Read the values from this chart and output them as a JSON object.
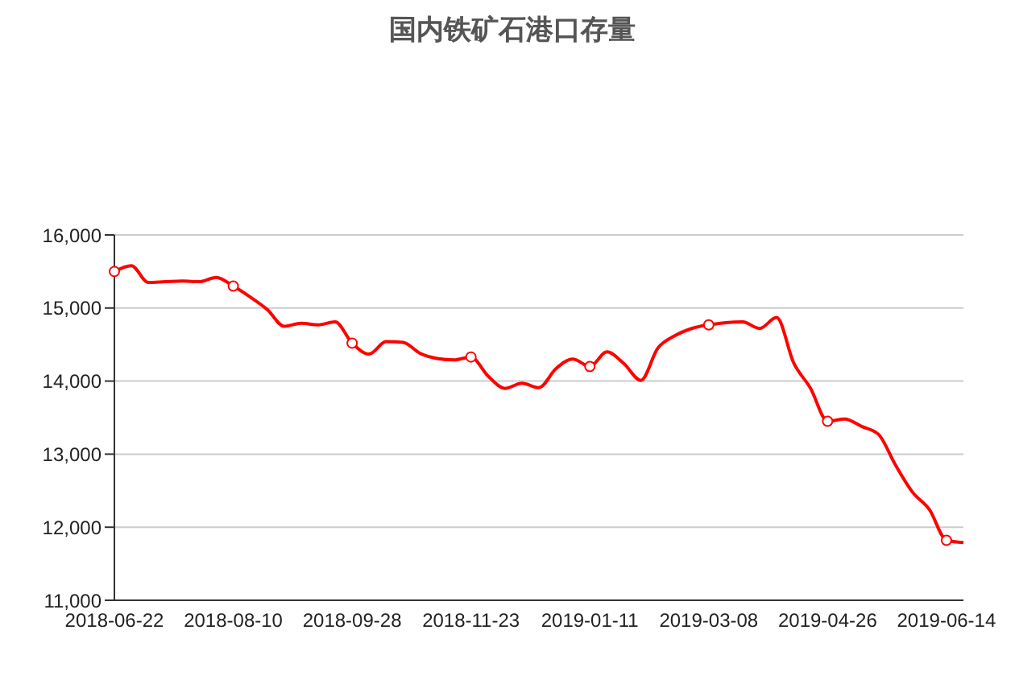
{
  "chart_data": {
    "type": "line",
    "title": "国内铁矿石港口存量",
    "categories": [
      "2018-06-22",
      null,
      null,
      null,
      null,
      null,
      null,
      "2018-08-10",
      null,
      null,
      null,
      null,
      null,
      null,
      "2018-09-28",
      null,
      null,
      null,
      null,
      null,
      null,
      "2018-11-23",
      null,
      null,
      null,
      null,
      null,
      null,
      "2019-01-11",
      null,
      null,
      null,
      null,
      null,
      null,
      "2019-03-08",
      null,
      null,
      null,
      null,
      null,
      null,
      "2019-04-26",
      null,
      null,
      null,
      null,
      null,
      null,
      "2019-06-14",
      null
    ],
    "series": [
      {
        "type": "scatter",
        "color": "#ff0000",
        "values": [
          15500,
          null,
          null,
          null,
          null,
          null,
          null,
          15300,
          null,
          null,
          null,
          null,
          null,
          null,
          14520,
          null,
          null,
          null,
          null,
          null,
          null,
          14330,
          null,
          null,
          null,
          null,
          null,
          null,
          14200,
          null,
          null,
          null,
          null,
          null,
          null,
          14770,
          null,
          null,
          null,
          null,
          null,
          null,
          13450,
          null,
          null,
          null,
          null,
          null,
          null,
          11820,
          null
        ]
      },
      {
        "color": "#ff0000",
        "marker": "none",
        "values": [
          15500,
          15580,
          15350,
          15360,
          15370,
          15360,
          15420,
          15300,
          15150,
          14980,
          14750,
          14790,
          14770,
          14810,
          14520,
          14370,
          14540,
          14530,
          14380,
          14310,
          14290,
          14330,
          14070,
          13900,
          13970,
          13910,
          14170,
          14300,
          14200,
          14400,
          14240,
          14010,
          14450,
          14620,
          14720,
          14770,
          14800,
          14810,
          14720,
          14870,
          14250,
          13900,
          13450,
          13480,
          13380,
          13270,
          12850,
          12480,
          12240,
          11820,
          11790
        ]
      }
    ],
    "ylim": [
      11000,
      16000
    ],
    "yticks": [
      {
        "value": 11000,
        "label": "11,000"
      },
      {
        "value": 12000,
        "label": "12,000"
      },
      {
        "value": 13000,
        "label": "13,000"
      },
      {
        "value": 14000,
        "label": "14,000"
      },
      {
        "value": 15000,
        "label": "15,000"
      },
      {
        "value": 16000,
        "label": "16,000"
      }
    ],
    "grid": "y",
    "marker": "circle",
    "line_style": "solid"
  }
}
